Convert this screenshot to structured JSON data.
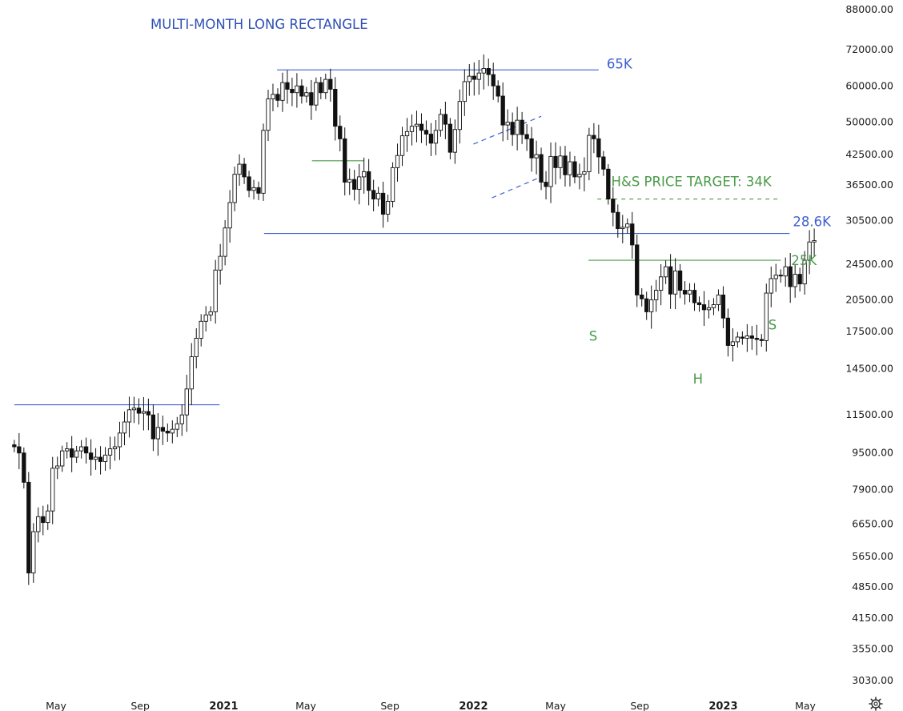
{
  "chart_data": {
    "type": "candlestick",
    "title": "MULTI-MONTH LONG RECTANGLE",
    "y_scale": "log",
    "ylim": [
      2900,
      90000
    ],
    "y_ticks": [
      "88000.00",
      "72000.00",
      "60000.00",
      "50000.00",
      "42500.00",
      "36500.00",
      "30500.00",
      "24500.00",
      "20500.00",
      "17500.00",
      "14500.00",
      "11500.00",
      "9500.00",
      "7900.00",
      "6650.00",
      "5650.00",
      "4850.00",
      "4150.00",
      "3550.00",
      "3030.00"
    ],
    "x_range": [
      "2020-03-01",
      "2023-05-20"
    ],
    "x_ticks": [
      {
        "date": "2020-05-01",
        "label": "May",
        "bold": false
      },
      {
        "date": "2020-09-01",
        "label": "Sep",
        "bold": false
      },
      {
        "date": "2021-01-01",
        "label": "2021",
        "bold": true
      },
      {
        "date": "2021-05-01",
        "label": "May",
        "bold": false
      },
      {
        "date": "2021-09-01",
        "label": "Sep",
        "bold": false
      },
      {
        "date": "2022-01-01",
        "label": "2022",
        "bold": true
      },
      {
        "date": "2022-05-01",
        "label": "May",
        "bold": false
      },
      {
        "date": "2022-09-01",
        "label": "Sep",
        "bold": false
      },
      {
        "date": "2023-01-01",
        "label": "2023",
        "bold": true
      },
      {
        "date": "2023-05-01",
        "label": "May",
        "bold": false
      }
    ],
    "weekly_close": [
      9800,
      9500,
      8200,
      5200,
      6400,
      6900,
      6700,
      7100,
      8800,
      8900,
      9600,
      9700,
      9300,
      9600,
      9800,
      9500,
      9200,
      9300,
      9100,
      9400,
      9700,
      9800,
      10500,
      11100,
      11800,
      11900,
      11600,
      11700,
      11500,
      10200,
      10800,
      10600,
      10500,
      10700,
      11000,
      11500,
      13100,
      15400,
      16900,
      18400,
      19000,
      19300,
      23800,
      25500,
      29400,
      33400,
      38500,
      40500,
      38000,
      35500,
      36000,
      35000,
      48000,
      56200,
      57500,
      55800,
      61000,
      59000,
      58000,
      60000,
      57000,
      58000,
      54500,
      61000,
      58000,
      62000,
      59000,
      49000,
      46000,
      37000,
      37500,
      35700,
      38000,
      39000,
      35500,
      34000,
      35000,
      31500,
      33600,
      39800,
      42300,
      46700,
      47700,
      49000,
      49500,
      48000,
      47100,
      45000,
      48000,
      52000,
      49500,
      43000,
      48200,
      55500,
      61300,
      63000,
      62000,
      64000,
      65500,
      63500,
      60000,
      57000,
      49300,
      50000,
      47000,
      50500,
      47000,
      46000,
      41800,
      42500,
      37000,
      36200,
      42100,
      39800,
      42200,
      38400,
      41000,
      38000,
      38500,
      39000,
      46800,
      46000,
      42000,
      39500,
      34000,
      31800,
      29300,
      29500,
      30000,
      27000,
      21000,
      20600,
      19300,
      20500,
      21500,
      23000,
      24200,
      21100,
      23700,
      21500,
      21100,
      21500,
      20200,
      20000,
      19500,
      19700,
      20000,
      21000,
      18700,
      16300,
      16600,
      17000,
      16900,
      17100,
      16900,
      16800,
      16700,
      21200,
      22800,
      23200,
      23100,
      24200,
      21900,
      23300,
      22200,
      25000,
      27400,
      27600
    ],
    "series": [
      {
        "ohlc": true
      }
    ],
    "levels": [
      {
        "value": 65000,
        "label": "65K",
        "color": "#3f5fd0",
        "from": "2021-03-20",
        "to": "2022-07-03"
      },
      {
        "value": 28600,
        "label": "28.6K",
        "color": "#3f5fd0",
        "from": "2021-03-01",
        "to": "2023-04-08"
      },
      {
        "value": 25000,
        "label": "25K",
        "color": "#4a9a4a",
        "from": "2022-06-18",
        "to": "2023-03-26"
      },
      {
        "value": 34000,
        "label": "H&S PRICE TARGET: 34K",
        "color": "#4a9a4a",
        "from": "2022-07-01",
        "to": "2023-03-25",
        "dashed": true
      },
      {
        "value": 12100,
        "label": "",
        "color": "#3f5fd0",
        "from": "2020-03-01",
        "to": "2020-12-26"
      },
      {
        "value": 41200,
        "label": "",
        "color": "#4a9a4a",
        "from": "2021-05-10",
        "to": "2021-07-25"
      }
    ],
    "channel": {
      "color": "#3f5fd0",
      "upper": [
        {
          "date": "2022-01-01",
          "value": 44800
        },
        {
          "date": "2022-04-10",
          "value": 51500
        }
      ],
      "lower": [
        {
          "date": "2022-01-28",
          "value": 34200
        },
        {
          "date": "2022-04-10",
          "value": 38000
        }
      ]
    },
    "pattern_labels": [
      {
        "text": "S",
        "date": "2022-06-25",
        "value": 17100
      },
      {
        "text": "H",
        "date": "2022-11-25",
        "value": 13800
      },
      {
        "text": "S",
        "date": "2023-03-14",
        "value": 18100
      }
    ]
  },
  "icons": {
    "settings": "gear-icon"
  }
}
